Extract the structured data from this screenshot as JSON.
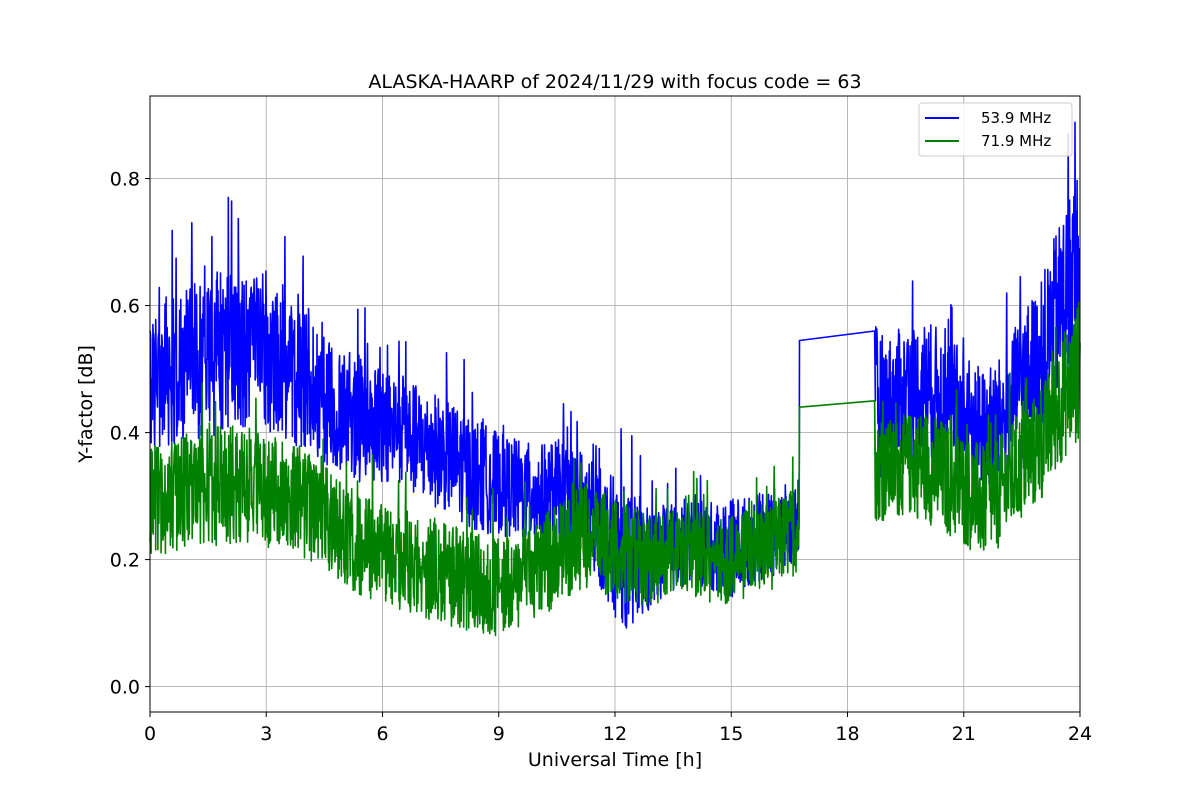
{
  "chart_data": {
    "type": "line",
    "title": "ALASKA-HAARP of 2024/11/29 with focus code = 63",
    "xlabel": "Universal Time [h]",
    "ylabel": "Y-factor [dB]",
    "xlim": [
      0,
      24
    ],
    "ylim": [
      -0.04,
      0.93
    ],
    "xticks": [
      0,
      3,
      6,
      9,
      12,
      15,
      18,
      21,
      24
    ],
    "yticks": [
      0.0,
      0.2,
      0.4,
      0.6,
      0.8
    ],
    "ytick_labels": [
      "0.0",
      "0.2",
      "0.4",
      "0.6",
      "0.8"
    ],
    "grid": true,
    "legend_position": "top-right",
    "series": [
      {
        "name": "53.9 MHz",
        "color": "#0000ff",
        "x": [
          0,
          0.5,
          1,
          1.5,
          2,
          2.5,
          3,
          3.5,
          4,
          4.5,
          5,
          5.5,
          6,
          6.5,
          7,
          7.5,
          8,
          8.5,
          9,
          9.5,
          10,
          10.5,
          11,
          11.5,
          12,
          12.5,
          13,
          13.5,
          14,
          14.5,
          15,
          15.5,
          16,
          16.5,
          16.75,
          16.76,
          18.7,
          18.72,
          19,
          19.5,
          20,
          20.5,
          21,
          21.5,
          22,
          22.5,
          23,
          23.5,
          24
        ],
        "y_center": [
          0.48,
          0.5,
          0.51,
          0.52,
          0.53,
          0.53,
          0.52,
          0.5,
          0.48,
          0.45,
          0.43,
          0.42,
          0.41,
          0.4,
          0.38,
          0.37,
          0.35,
          0.33,
          0.32,
          0.31,
          0.3,
          0.31,
          0.3,
          0.26,
          0.22,
          0.19,
          0.2,
          0.22,
          0.23,
          0.22,
          0.22,
          0.23,
          0.24,
          0.25,
          0.26,
          0.545,
          0.56,
          0.45,
          0.44,
          0.46,
          0.47,
          0.45,
          0.42,
          0.4,
          0.42,
          0.48,
          0.52,
          0.6,
          0.68
        ],
        "y_spread": [
          0.11,
          0.12,
          0.12,
          0.13,
          0.13,
          0.12,
          0.12,
          0.11,
          0.11,
          0.1,
          0.1,
          0.1,
          0.09,
          0.09,
          0.09,
          0.09,
          0.09,
          0.09,
          0.08,
          0.08,
          0.08,
          0.08,
          0.08,
          0.09,
          0.11,
          0.11,
          0.08,
          0.07,
          0.07,
          0.07,
          0.08,
          0.07,
          0.07,
          0.07,
          0.06,
          0.0,
          0.0,
          0.12,
          0.11,
          0.11,
          0.11,
          0.11,
          0.11,
          0.1,
          0.1,
          0.11,
          0.12,
          0.14,
          0.15
        ]
      },
      {
        "name": "71.9 MHz",
        "color": "#008000",
        "x": [
          0,
          0.5,
          1,
          1.5,
          2,
          2.5,
          3,
          3.5,
          4,
          4.5,
          5,
          5.5,
          6,
          6.5,
          7,
          7.5,
          8,
          8.5,
          9,
          9.5,
          10,
          10.5,
          11,
          11.5,
          12,
          12.5,
          13,
          13.5,
          14,
          14.5,
          15,
          15.5,
          16,
          16.5,
          16.75,
          16.76,
          18.7,
          18.72,
          19,
          19.5,
          20,
          20.5,
          21,
          21.5,
          22,
          22.5,
          23,
          23.5,
          24
        ],
        "y_center": [
          0.29,
          0.3,
          0.31,
          0.32,
          0.32,
          0.31,
          0.31,
          0.3,
          0.29,
          0.27,
          0.24,
          0.22,
          0.21,
          0.2,
          0.19,
          0.18,
          0.17,
          0.16,
          0.16,
          0.17,
          0.18,
          0.21,
          0.24,
          0.23,
          0.22,
          0.2,
          0.2,
          0.21,
          0.21,
          0.2,
          0.2,
          0.21,
          0.22,
          0.24,
          0.25,
          0.44,
          0.45,
          0.34,
          0.34,
          0.35,
          0.35,
          0.33,
          0.31,
          0.29,
          0.31,
          0.35,
          0.38,
          0.45,
          0.5
        ],
        "y_spread": [
          0.09,
          0.09,
          0.09,
          0.1,
          0.1,
          0.09,
          0.09,
          0.09,
          0.09,
          0.08,
          0.08,
          0.08,
          0.08,
          0.08,
          0.08,
          0.08,
          0.08,
          0.08,
          0.08,
          0.08,
          0.08,
          0.08,
          0.09,
          0.08,
          0.08,
          0.08,
          0.07,
          0.07,
          0.07,
          0.07,
          0.07,
          0.07,
          0.07,
          0.07,
          0.07,
          0.0,
          0.0,
          0.08,
          0.08,
          0.08,
          0.09,
          0.09,
          0.09,
          0.09,
          0.09,
          0.09,
          0.09,
          0.1,
          0.11
        ]
      }
    ]
  }
}
